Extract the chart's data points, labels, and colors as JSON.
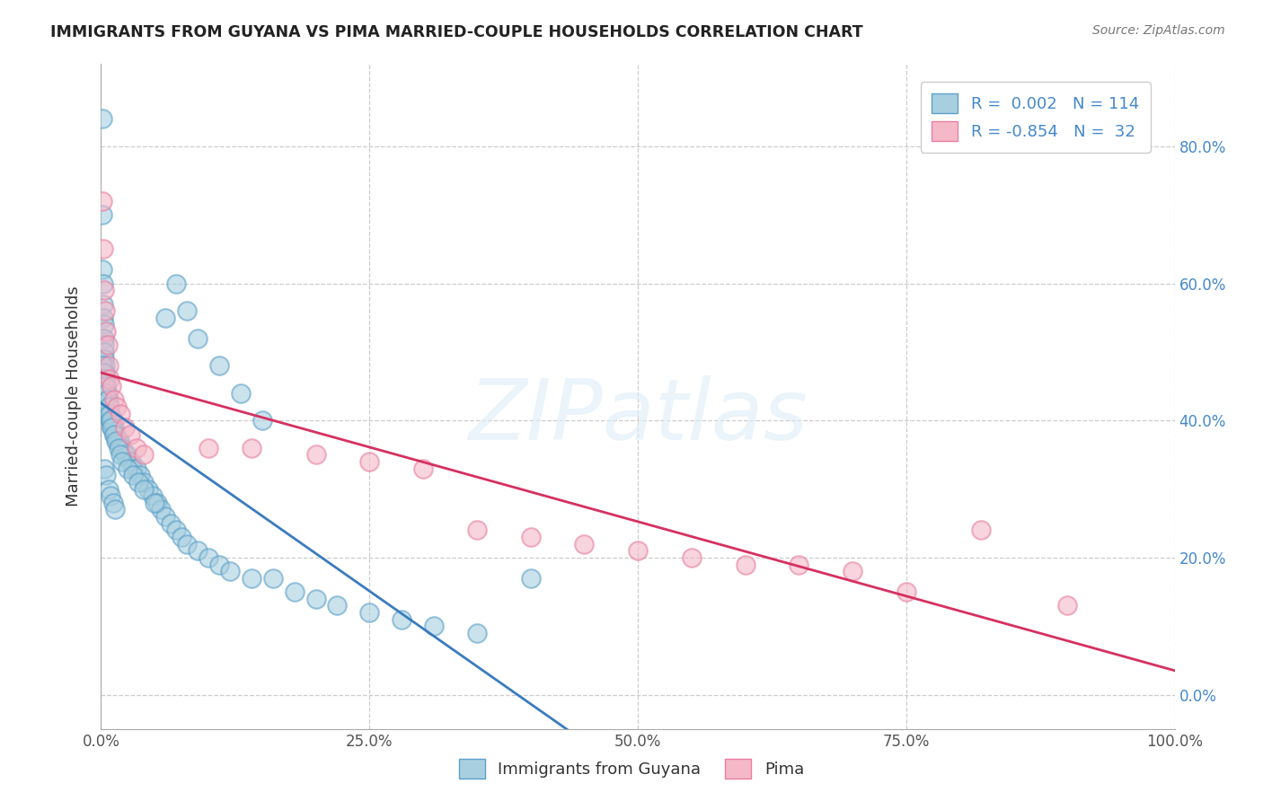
{
  "title": "IMMIGRANTS FROM GUYANA VS PIMA MARRIED-COUPLE HOUSEHOLDS CORRELATION CHART",
  "source": "Source: ZipAtlas.com",
  "ylabel": "Married-couple Households",
  "xlim": [
    0.0,
    1.0
  ],
  "ylim": [
    -0.05,
    0.92
  ],
  "yticks": [
    0.0,
    0.2,
    0.4,
    0.6,
    0.8
  ],
  "xticks": [
    0.0,
    0.25,
    0.5,
    0.75,
    1.0
  ],
  "xtick_labels": [
    "0.0%",
    "25.0%",
    "50.0%",
    "75.0%",
    "100.0%"
  ],
  "ytick_labels": [
    "0.0%",
    "20.0%",
    "40.0%",
    "60.0%",
    "80.0%"
  ],
  "blue_color": "#a8cfe0",
  "pink_color": "#f4b8c8",
  "blue_edge": "#5da0c8",
  "pink_edge": "#e87fa0",
  "blue_line_color": "#3a7bbf",
  "pink_line_color": "#d63060",
  "R_blue": 0.002,
  "N_blue": 114,
  "R_pink": -0.854,
  "N_pink": 32,
  "legend_label_blue": "Immigrants from Guyana",
  "legend_label_pink": "Pima",
  "stat_color": "#4488cc",
  "blue_scatter_x": [
    0.001,
    0.001,
    0.001,
    0.002,
    0.002,
    0.002,
    0.002,
    0.003,
    0.003,
    0.003,
    0.003,
    0.003,
    0.004,
    0.004,
    0.004,
    0.004,
    0.004,
    0.005,
    0.005,
    0.005,
    0.005,
    0.005,
    0.006,
    0.006,
    0.006,
    0.006,
    0.007,
    0.007,
    0.007,
    0.007,
    0.008,
    0.008,
    0.008,
    0.009,
    0.009,
    0.009,
    0.01,
    0.01,
    0.01,
    0.011,
    0.011,
    0.012,
    0.012,
    0.013,
    0.014,
    0.015,
    0.016,
    0.017,
    0.018,
    0.02,
    0.022,
    0.024,
    0.026,
    0.028,
    0.03,
    0.033,
    0.036,
    0.04,
    0.044,
    0.048,
    0.052,
    0.056,
    0.06,
    0.065,
    0.07,
    0.075,
    0.08,
    0.09,
    0.1,
    0.11,
    0.12,
    0.14,
    0.16,
    0.18,
    0.2,
    0.22,
    0.25,
    0.28,
    0.31,
    0.35,
    0.001,
    0.002,
    0.003,
    0.004,
    0.005,
    0.006,
    0.007,
    0.008,
    0.009,
    0.01,
    0.012,
    0.014,
    0.016,
    0.018,
    0.02,
    0.025,
    0.03,
    0.035,
    0.04,
    0.05,
    0.06,
    0.07,
    0.08,
    0.09,
    0.11,
    0.13,
    0.15,
    0.4,
    0.003,
    0.005,
    0.007,
    0.009,
    0.011,
    0.013
  ],
  "blue_scatter_y": [
    0.84,
    0.7,
    0.62,
    0.6,
    0.57,
    0.55,
    0.52,
    0.54,
    0.52,
    0.51,
    0.5,
    0.49,
    0.48,
    0.47,
    0.47,
    0.46,
    0.45,
    0.46,
    0.45,
    0.45,
    0.44,
    0.43,
    0.44,
    0.43,
    0.43,
    0.42,
    0.43,
    0.42,
    0.42,
    0.41,
    0.42,
    0.41,
    0.41,
    0.41,
    0.4,
    0.4,
    0.4,
    0.4,
    0.39,
    0.4,
    0.39,
    0.39,
    0.38,
    0.38,
    0.38,
    0.37,
    0.37,
    0.37,
    0.36,
    0.36,
    0.35,
    0.35,
    0.34,
    0.34,
    0.33,
    0.33,
    0.32,
    0.31,
    0.3,
    0.29,
    0.28,
    0.27,
    0.26,
    0.25,
    0.24,
    0.23,
    0.22,
    0.21,
    0.2,
    0.19,
    0.18,
    0.17,
    0.17,
    0.15,
    0.14,
    0.13,
    0.12,
    0.11,
    0.1,
    0.09,
    0.48,
    0.47,
    0.46,
    0.45,
    0.44,
    0.43,
    0.42,
    0.41,
    0.4,
    0.39,
    0.38,
    0.37,
    0.36,
    0.35,
    0.34,
    0.33,
    0.32,
    0.31,
    0.3,
    0.28,
    0.55,
    0.6,
    0.56,
    0.52,
    0.48,
    0.44,
    0.4,
    0.17,
    0.33,
    0.32,
    0.3,
    0.29,
    0.28,
    0.27
  ],
  "pink_scatter_x": [
    0.001,
    0.002,
    0.003,
    0.004,
    0.005,
    0.006,
    0.007,
    0.008,
    0.01,
    0.012,
    0.015,
    0.018,
    0.022,
    0.027,
    0.033,
    0.04,
    0.35,
    0.4,
    0.45,
    0.5,
    0.55,
    0.6,
    0.65,
    0.7,
    0.75,
    0.82,
    0.9,
    0.2,
    0.25,
    0.3,
    0.1,
    0.14
  ],
  "pink_scatter_y": [
    0.72,
    0.65,
    0.59,
    0.56,
    0.53,
    0.51,
    0.48,
    0.46,
    0.45,
    0.43,
    0.42,
    0.41,
    0.39,
    0.38,
    0.36,
    0.35,
    0.24,
    0.23,
    0.22,
    0.21,
    0.2,
    0.19,
    0.19,
    0.18,
    0.15,
    0.24,
    0.13,
    0.35,
    0.34,
    0.33,
    0.36,
    0.36
  ]
}
